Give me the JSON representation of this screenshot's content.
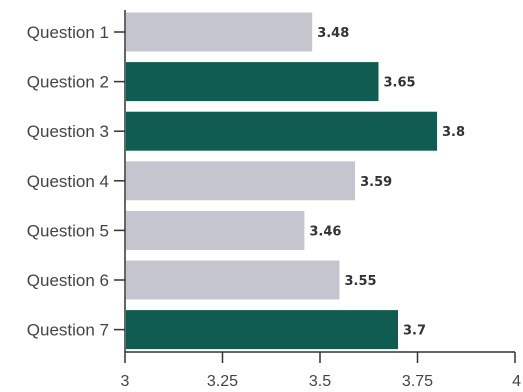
{
  "chart_data": {
    "type": "bar",
    "orientation": "horizontal",
    "categories": [
      "Question 1",
      "Question 2",
      "Question 3",
      "Question 4",
      "Question 5",
      "Question 6",
      "Question 7"
    ],
    "values": [
      3.48,
      3.65,
      3.8,
      3.59,
      3.46,
      3.55,
      3.7
    ],
    "value_labels": [
      "3.48",
      "3.65",
      "3.8",
      "3.59",
      "3.46",
      "3.55",
      "3.7"
    ],
    "highlighted": [
      false,
      true,
      true,
      false,
      false,
      false,
      true
    ],
    "x_ticks": [
      3,
      3.25,
      3.5,
      3.75,
      4
    ],
    "x_tick_labels": [
      "3",
      "3.25",
      "3.5",
      "3.75",
      "4"
    ],
    "xlim": [
      3,
      4
    ],
    "grid": false,
    "title": "",
    "xlabel": "",
    "ylabel": "",
    "colors": {
      "highlight": "#115c50",
      "default": "#c5c5cf"
    }
  }
}
